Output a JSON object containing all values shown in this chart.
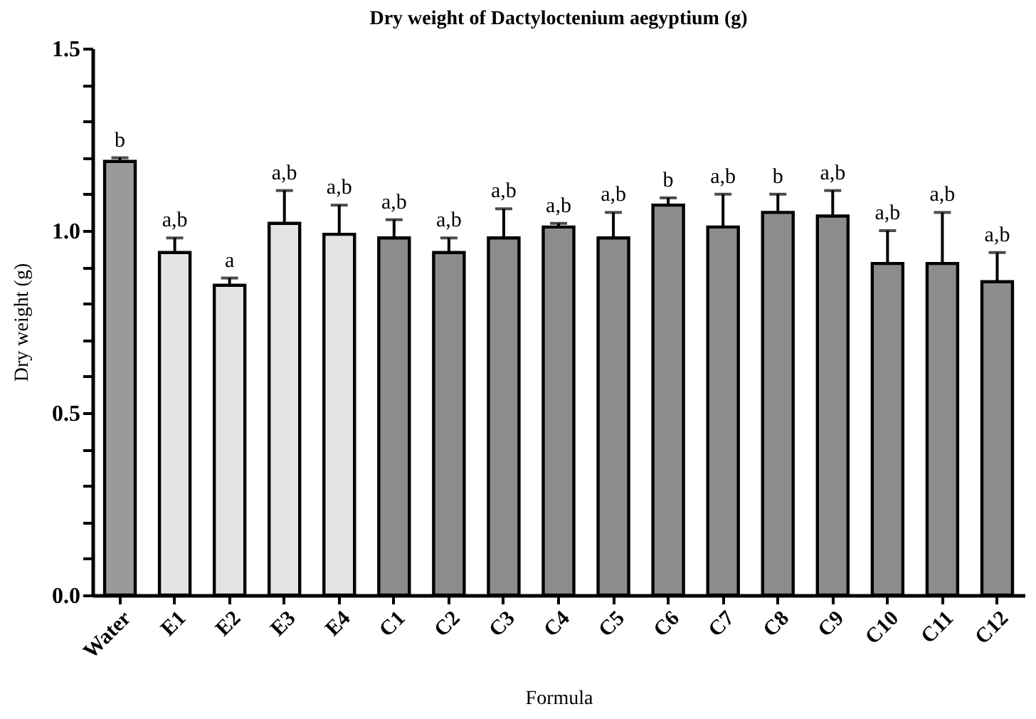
{
  "chart_data": {
    "type": "bar",
    "title": "Dry weight of Dactyloctenium aegyptium (g)",
    "xlabel": "Formula",
    "ylabel": "Dry weight (g)",
    "categories": [
      "Water",
      "E1",
      "E2",
      "E3",
      "E4",
      "C1",
      "C2",
      "C3",
      "C4",
      "C5",
      "C6",
      "C7",
      "C8",
      "C9",
      "C10",
      "C11",
      "C12"
    ],
    "values": [
      1.19,
      0.94,
      0.85,
      1.02,
      0.99,
      0.98,
      0.94,
      0.98,
      1.01,
      0.98,
      1.07,
      1.01,
      1.05,
      1.04,
      0.91,
      0.91,
      0.86
    ],
    "errors": [
      [
        1.19,
        1.2
      ],
      [
        0.94,
        0.98
      ],
      [
        0.85,
        0.87
      ],
      [
        1.02,
        1.11
      ],
      [
        0.99,
        1.07
      ],
      [
        0.98,
        1.03
      ],
      [
        0.94,
        0.98
      ],
      [
        0.98,
        1.06
      ],
      [
        1.01,
        1.02
      ],
      [
        0.98,
        1.05
      ],
      [
        1.07,
        1.09
      ],
      [
        1.01,
        1.1
      ],
      [
        1.05,
        1.1
      ],
      [
        1.04,
        1.11
      ],
      [
        0.91,
        1.0
      ],
      [
        0.91,
        1.05
      ],
      [
        0.86,
        0.94
      ]
    ],
    "colors": [
      "#9a9a9a",
      "#e4e4e4",
      "#e4e4e4",
      "#e4e4e4",
      "#e4e4e4",
      "#8c8c8c",
      "#8c8c8c",
      "#8c8c8c",
      "#8c8c8c",
      "#8c8c8c",
      "#8c8c8c",
      "#8c8c8c",
      "#8c8c8c",
      "#8c8c8c",
      "#8c8c8c",
      "#8c8c8c",
      "#8c8c8c"
    ],
    "annotations": [
      {
        "text": "b",
        "x": "Water",
        "y": 1.2
      },
      {
        "text": "a,b",
        "x": "E1",
        "y": 0.98
      },
      {
        "text": "a",
        "x": "E2",
        "y": 0.87
      },
      {
        "text": "a,b",
        "x": "E3",
        "y": 1.11
      },
      {
        "text": "a,b",
        "x": "E4",
        "y": 1.07
      },
      {
        "text": "a,b",
        "x": "C1",
        "y": 1.03
      },
      {
        "text": "a,b",
        "x": "C2",
        "y": 0.98
      },
      {
        "text": "a,b",
        "x": "C3",
        "y": 1.06
      },
      {
        "text": "a,b",
        "x": "C4",
        "y": 1.02
      },
      {
        "text": "a,b",
        "x": "C5",
        "y": 1.05
      },
      {
        "text": "b",
        "x": "C6",
        "y": 1.09
      },
      {
        "text": "a,b",
        "x": "C7",
        "y": 1.1
      },
      {
        "text": "b",
        "x": "C8",
        "y": 1.1
      },
      {
        "text": "a,b",
        "x": "C9",
        "y": 1.11
      },
      {
        "text": "a,b",
        "x": "C10",
        "y": 1.0
      },
      {
        "text": "a,b",
        "x": "C11",
        "y": 1.05
      },
      {
        "text": "a,b",
        "x": "C12",
        "y": 0.94
      }
    ],
    "ylim": [
      0,
      1.5
    ],
    "yticks": [
      {
        "value": 0,
        "label": "0.0"
      },
      {
        "value": 0.1,
        "label": null
      },
      {
        "value": 0.2,
        "label": null
      },
      {
        "value": 0.3,
        "label": null
      },
      {
        "value": 0.4,
        "label": null
      },
      {
        "value": 0.5,
        "label": "0.5"
      },
      {
        "value": 0.6,
        "label": null
      },
      {
        "value": 0.7,
        "label": null
      },
      {
        "value": 0.8,
        "label": null
      },
      {
        "value": 0.9,
        "label": null
      },
      {
        "value": 1,
        "label": "1.0"
      },
      {
        "value": 1.1,
        "label": null
      },
      {
        "value": 1.2,
        "label": null
      },
      {
        "value": 1.3,
        "label": null
      },
      {
        "value": 1.4,
        "label": null
      },
      {
        "value": 1.5,
        "label": "1.5"
      }
    ],
    "grid": false
  }
}
